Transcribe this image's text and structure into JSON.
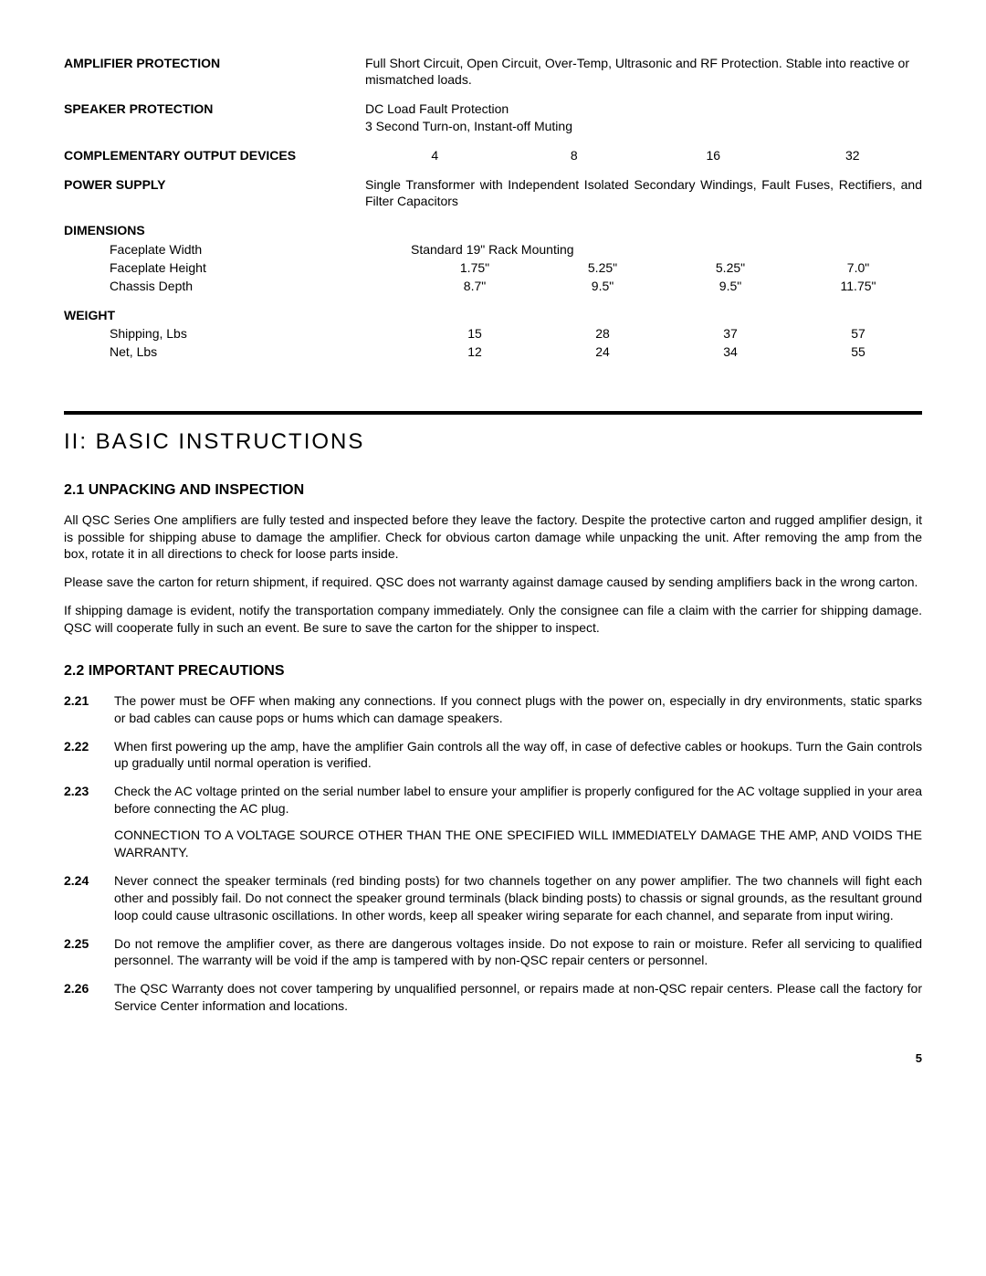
{
  "specs": {
    "amp_protection": {
      "label": "AMPLIFIER PROTECTION",
      "value": "Full Short Circuit, Open Circuit, Over-Temp, Ultrasonic and RF Protection. Stable into reactive or mismatched loads."
    },
    "speaker_protection": {
      "label": "SPEAKER PROTECTION",
      "value_line1": "DC Load Fault Protection",
      "value_line2": "3 Second Turn-on, Instant-off Muting"
    },
    "output_devices": {
      "label": "COMPLEMENTARY OUTPUT DEVICES",
      "cols": [
        "4",
        "8",
        "16",
        "32"
      ]
    },
    "power_supply": {
      "label": "POWER SUPPLY",
      "value": "Single Transformer with Independent Isolated Secondary Windings, Fault Fuses, Rectifiers, and Filter Capacitors"
    },
    "dimensions": {
      "label": "DIMENSIONS",
      "faceplate_width": {
        "label": "Faceplate Width",
        "value": "Standard 19\" Rack Mounting"
      },
      "faceplate_height": {
        "label": "Faceplate Height",
        "cols": [
          "1.75\"",
          "5.25\"",
          "5.25\"",
          "7.0\""
        ]
      },
      "chassis_depth": {
        "label": "Chassis Depth",
        "cols": [
          "8.7\"",
          "9.5\"",
          "9.5\"",
          "11.75\""
        ]
      }
    },
    "weight": {
      "label": "WEIGHT",
      "shipping": {
        "label": "Shipping, Lbs",
        "cols": [
          "15",
          "28",
          "37",
          "57"
        ]
      },
      "net": {
        "label": "Net, Lbs",
        "cols": [
          "12",
          "24",
          "34",
          "55"
        ]
      }
    }
  },
  "section": {
    "title": "II:  BASIC INSTRUCTIONS",
    "s21": {
      "title": "2.1  UNPACKING AND INSPECTION",
      "p1": "All QSC Series One amplifiers are fully tested and inspected before they leave the factory.  Despite the protective carton and rugged amplifier design, it is possible for shipping abuse to damage the amplifier.  Check for obvious carton damage while unpacking the unit.  After removing the amp from the box, rotate it in all directions to check for loose parts inside.",
      "p2": "Please save the carton for return shipment, if required.  QSC does not warranty against damage caused by sending amplifiers back in the wrong carton.",
      "p3": "If shipping damage is evident, notify the transportation company immediately.  Only the consignee can file a claim with the carrier for shipping damage.  QSC will cooperate fully in such an event.  Be sure to save the carton for the shipper to inspect."
    },
    "s22": {
      "title": "2.2 IMPORTANT PRECAUTIONS",
      "items": [
        {
          "num": "2.21",
          "text": "The power must be OFF when making any connections.  If you connect plugs with the power on, especially in dry environments, static sparks or bad cables can cause pops or hums which can damage speakers."
        },
        {
          "num": "2.22",
          "text": "When first powering up the amp, have the amplifier Gain controls all the way off, in case of defective cables or hookups.  Turn the Gain controls up gradually until normal operation is verified."
        },
        {
          "num": "2.23",
          "text": "Check the AC voltage printed on the serial number label to ensure your amplifier is properly configured for the AC voltage supplied in your area before connecting the AC plug.",
          "extra": "CONNECTION TO A VOLTAGE SOURCE OTHER THAN THE ONE SPECIFIED WILL IMMEDIATELY DAMAGE THE AMP, AND VOIDS THE WARRANTY."
        },
        {
          "num": "2.24",
          "text": "Never connect the speaker terminals (red binding posts) for two channels together on any power amplifier.  The two channels will fight each other and possibly fail.  Do not connect the speaker ground terminals (black binding posts) to chassis or signal grounds, as the resultant ground loop could cause ultrasonic oscillations. In other words, keep all speaker wiring separate for each channel, and separate from input wiring."
        },
        {
          "num": "2.25",
          "text": "Do not remove the amplifier cover, as there are dangerous voltages inside.  Do not expose to rain or moisture.  Refer all servicing to qualified personnel.  The warranty will be void if the amp is tampered with by non-QSC repair centers or personnel."
        },
        {
          "num": "2.26",
          "text": "The QSC Warranty does not cover tampering by unqualified personnel, or repairs made at non-QSC repair centers.  Please call the factory for Service Center information and locations."
        }
      ]
    }
  },
  "page_number": "5"
}
